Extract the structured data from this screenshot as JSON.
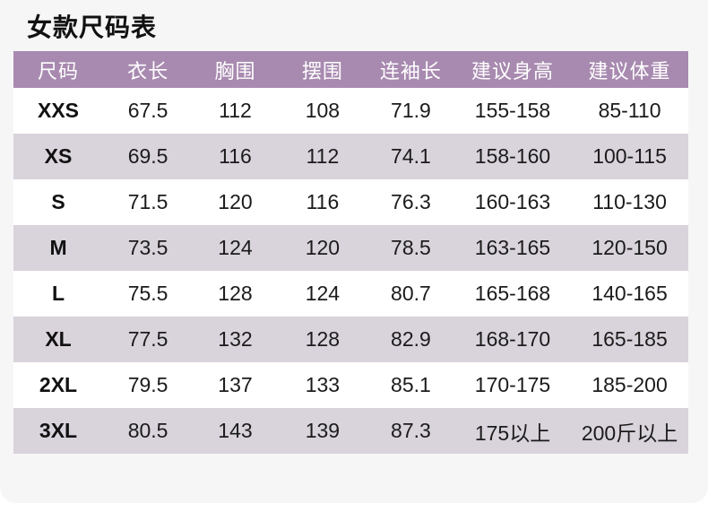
{
  "page": {
    "title": "女款尺码表"
  },
  "colors": {
    "header_bg": "#a88ab0",
    "row_alt_bg": "#d9d3dc",
    "row_bg": "#ffffff",
    "card_bg": "#f7f6f7",
    "header_text": "#ffffff",
    "cell_text": "#1b1b1b"
  },
  "chart_data": {
    "type": "table",
    "title": "女款尺码表",
    "columns": [
      "尺码",
      "衣长",
      "胸围",
      "摆围",
      "连袖长",
      "建议身高",
      "建议体重"
    ],
    "rows": [
      [
        "XXS",
        "67.5",
        "112",
        "108",
        "71.9",
        "155-158",
        "85-110"
      ],
      [
        "XS",
        "69.5",
        "116",
        "112",
        "74.1",
        "158-160",
        "100-115"
      ],
      [
        "S",
        "71.5",
        "120",
        "116",
        "76.3",
        "160-163",
        "110-130"
      ],
      [
        "M",
        "73.5",
        "124",
        "120",
        "78.5",
        "163-165",
        "120-150"
      ],
      [
        "L",
        "75.5",
        "128",
        "124",
        "80.7",
        "165-168",
        "140-165"
      ],
      [
        "XL",
        "77.5",
        "132",
        "128",
        "82.9",
        "168-170",
        "165-185"
      ],
      [
        "2XL",
        "79.5",
        "137",
        "133",
        "85.1",
        "170-175",
        "185-200"
      ],
      [
        "3XL",
        "80.5",
        "143",
        "139",
        "87.3",
        "175以上",
        "200斤以上"
      ]
    ]
  }
}
